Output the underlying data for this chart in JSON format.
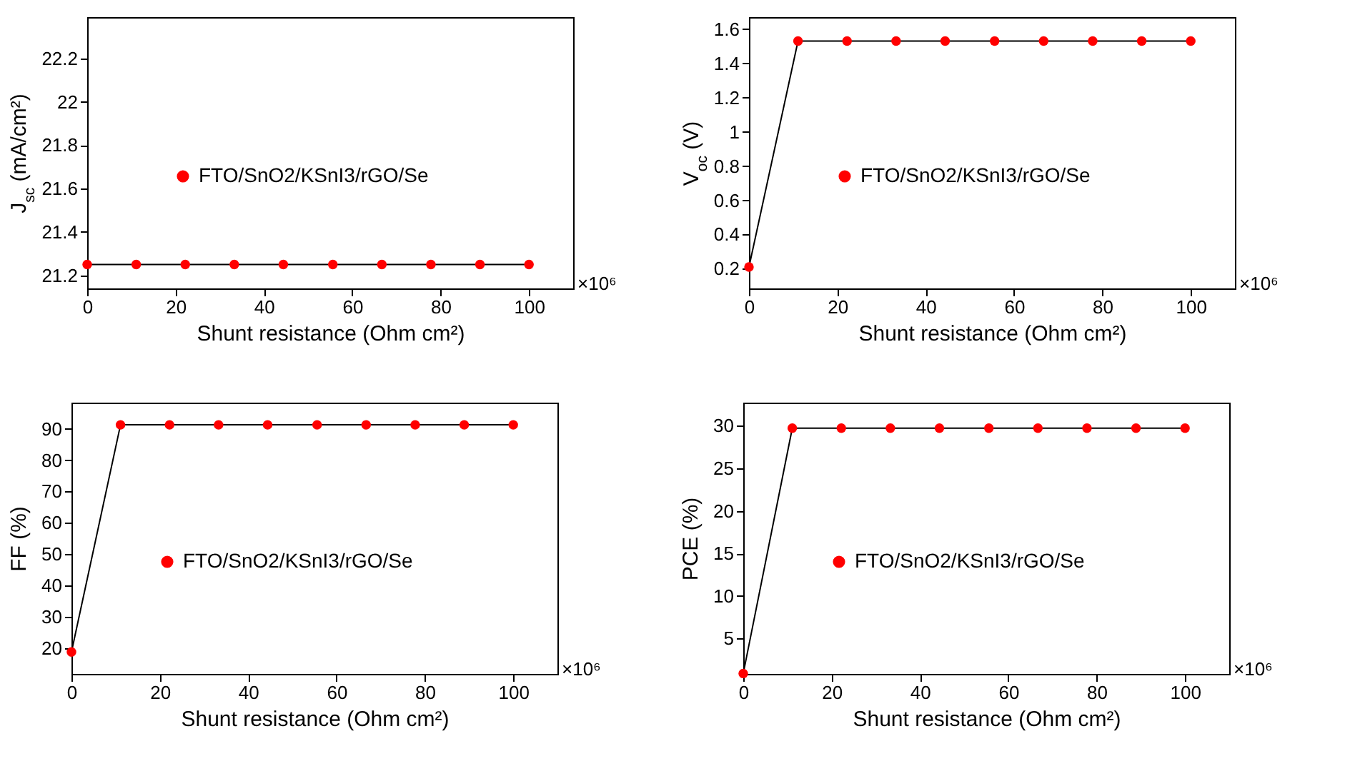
{
  "chart_data": [
    {
      "type": "line",
      "xlabel": "Shunt resistance (Ohm cm²)",
      "ylabel": "J$_{sc}$ (mA/cm²)",
      "x": [
        0,
        11.1,
        22.2,
        33.3,
        44.4,
        55.6,
        66.7,
        77.8,
        88.9,
        100
      ],
      "xlim": [
        0,
        110
      ],
      "xticks": [
        0,
        20,
        40,
        60,
        80,
        100
      ],
      "ylim": [
        21.14,
        22.39
      ],
      "yticks": [
        21.2,
        21.4,
        21.6,
        21.8,
        22,
        22.2
      ],
      "marker": "circle",
      "legend": "left",
      "annotations": [
        "×10⁶"
      ],
      "series": [
        {
          "name": "FTO/SnO2/KSnI3/rGO/Se",
          "color": "#ff0000",
          "values": [
            21.25,
            21.25,
            21.25,
            21.25,
            21.25,
            21.25,
            21.25,
            21.25,
            21.25,
            21.25
          ]
        }
      ]
    },
    {
      "type": "line",
      "xlabel": "Shunt resistance (Ohm cm²)",
      "ylabel": "V$_{oc}$ (V)",
      "x": [
        0,
        11.1,
        22.2,
        33.3,
        44.4,
        55.6,
        66.7,
        77.8,
        88.9,
        100
      ],
      "xlim": [
        0,
        110
      ],
      "xticks": [
        0,
        20,
        40,
        60,
        80,
        100
      ],
      "ylim": [
        0.085,
        1.67
      ],
      "yticks": [
        0.2,
        0.4,
        0.6,
        0.8,
        1,
        1.2,
        1.4,
        1.6
      ],
      "marker": "circle",
      "legend": "left",
      "annotations": [
        "×10⁶"
      ],
      "series": [
        {
          "name": "FTO/SnO2/KSnI3/rGO/Se",
          "color": "#ff0000",
          "values": [
            0.21,
            1.53,
            1.53,
            1.53,
            1.53,
            1.53,
            1.53,
            1.53,
            1.53,
            1.53
          ]
        }
      ]
    },
    {
      "type": "line",
      "xlabel": "Shunt resistance (Ohm cm²)",
      "ylabel": "FF (%)",
      "x": [
        0,
        11.1,
        22.2,
        33.3,
        44.4,
        55.6,
        66.7,
        77.8,
        88.9,
        100
      ],
      "xlim": [
        0,
        110
      ],
      "xticks": [
        0,
        20,
        40,
        60,
        80,
        100
      ],
      "ylim": [
        11.7,
        98.4
      ],
      "yticks": [
        20,
        30,
        40,
        50,
        60,
        70,
        80,
        90
      ],
      "marker": "circle",
      "legend": "left",
      "annotations": [
        "×10⁶"
      ],
      "series": [
        {
          "name": "FTO/SnO2/KSnI3/rGO/Se",
          "color": "#ff0000",
          "values": [
            18.7,
            91.3,
            91.3,
            91.3,
            91.3,
            91.3,
            91.3,
            91.3,
            91.3,
            91.3
          ]
        }
      ]
    },
    {
      "type": "line",
      "xlabel": "Shunt resistance (Ohm cm²)",
      "ylabel": "PCE (%)",
      "x": [
        0,
        11.1,
        22.2,
        33.3,
        44.4,
        55.6,
        66.7,
        77.8,
        88.9,
        100
      ],
      "xlim": [
        0,
        110
      ],
      "xticks": [
        0,
        20,
        40,
        60,
        80,
        100
      ],
      "ylim": [
        0.85,
        32.7
      ],
      "yticks": [
        5,
        10,
        15,
        20,
        25,
        30
      ],
      "marker": "circle",
      "legend": "left",
      "annotations": [
        "×10⁶"
      ],
      "series": [
        {
          "name": "FTO/SnO2/KSnI3/rGO/Se",
          "color": "#ff0000",
          "values": [
            0.9,
            29.7,
            29.7,
            29.7,
            29.7,
            29.7,
            29.7,
            29.7,
            29.7,
            29.7
          ]
        }
      ]
    }
  ]
}
